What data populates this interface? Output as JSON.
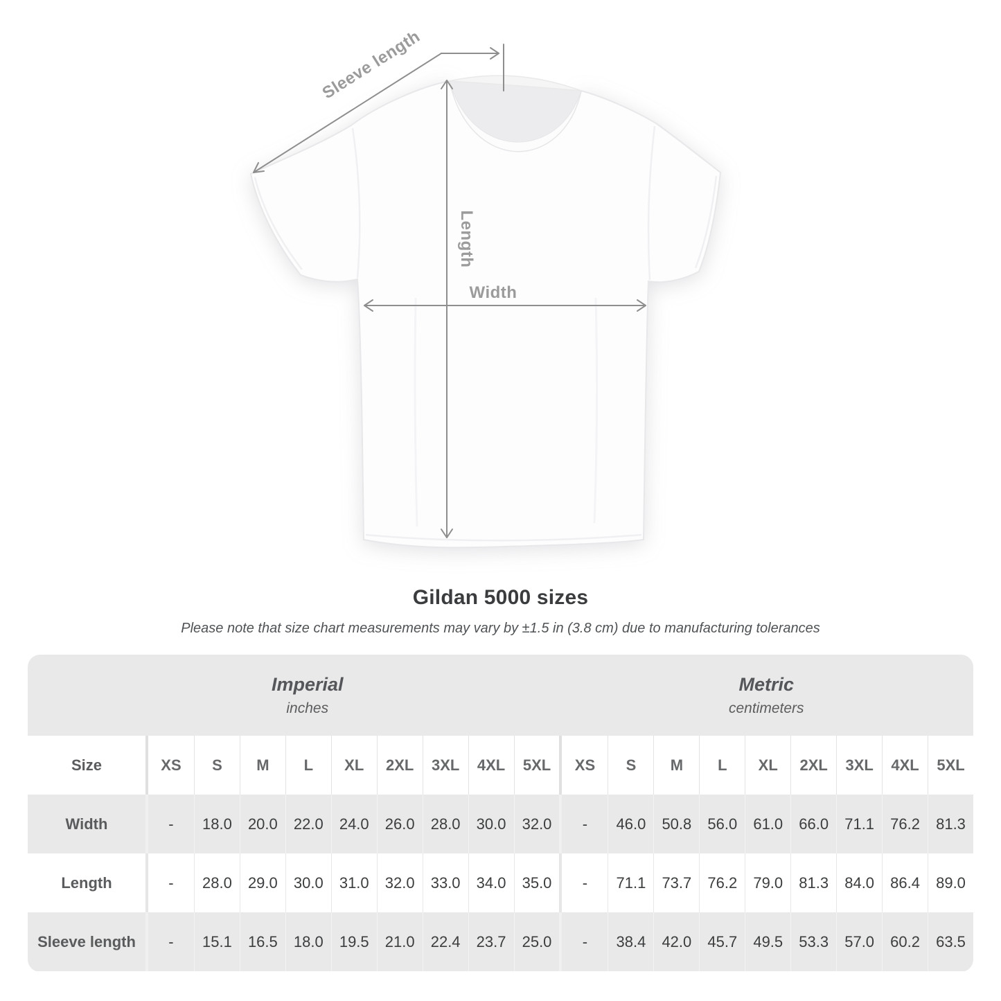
{
  "diagram": {
    "sleeve_length_label": "Sleeve length",
    "length_label": "Length",
    "width_label": "Width"
  },
  "title": "Gildan 5000 sizes",
  "note": "Please note that size chart measurements may vary by ±1.5 in (3.8 cm) due to manufacturing tolerances",
  "size_chart": {
    "size_col_header": "Size",
    "unit_groups": [
      {
        "name": "Imperial",
        "unit": "inches"
      },
      {
        "name": "Metric",
        "unit": "centimeters"
      }
    ],
    "sizes": [
      "XS",
      "S",
      "M",
      "L",
      "XL",
      "2XL",
      "3XL",
      "4XL",
      "5XL"
    ],
    "rows": [
      {
        "label": "Width",
        "imperial": [
          "-",
          "18.0",
          "20.0",
          "22.0",
          "24.0",
          "26.0",
          "28.0",
          "30.0",
          "32.0"
        ],
        "metric": [
          "-",
          "46.0",
          "50.8",
          "56.0",
          "61.0",
          "66.0",
          "71.1",
          "76.2",
          "81.3"
        ]
      },
      {
        "label": "Length",
        "imperial": [
          "-",
          "28.0",
          "29.0",
          "30.0",
          "31.0",
          "32.0",
          "33.0",
          "34.0",
          "35.0"
        ],
        "metric": [
          "-",
          "71.1",
          "73.7",
          "76.2",
          "79.0",
          "81.3",
          "84.0",
          "86.4",
          "89.0"
        ]
      },
      {
        "label": "Sleeve length",
        "imperial": [
          "-",
          "15.1",
          "16.5",
          "18.0",
          "19.5",
          "21.0",
          "22.4",
          "23.7",
          "25.0"
        ],
        "metric": [
          "-",
          "38.4",
          "42.0",
          "45.7",
          "49.5",
          "53.3",
          "57.0",
          "60.2",
          "63.5"
        ]
      }
    ]
  },
  "colors": {
    "row_gray": "#e9e9e9",
    "row_white": "#ffffff",
    "annotation_text": "#9b9b9b",
    "arrow": "#8e8e8e",
    "title_text": "#3a3c3e",
    "value_text": "#3b3d3e"
  }
}
